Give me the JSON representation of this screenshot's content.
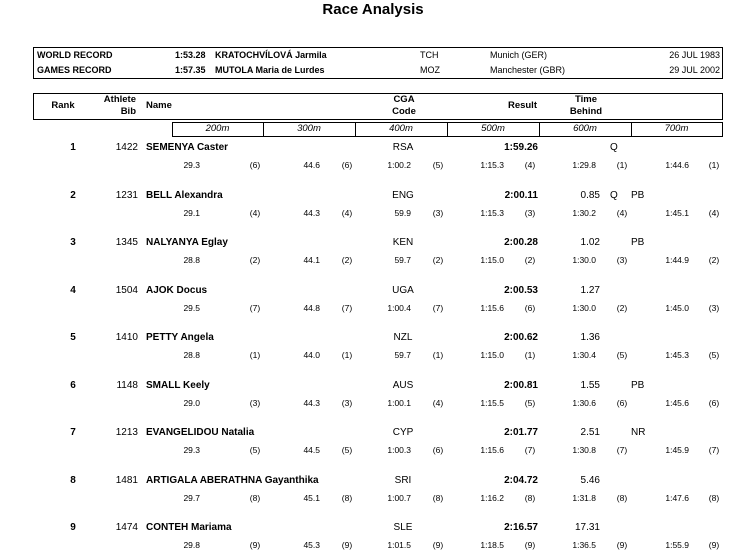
{
  "title": "Race Analysis",
  "records": [
    {
      "label": "WORLD RECORD",
      "time": "1:53.28",
      "name": "KRATOCHVÍLOVÁ Jarmila",
      "country": "TCH",
      "venue": "Munich (GER)",
      "date": "26 JUL 1983"
    },
    {
      "label": "GAMES RECORD",
      "time": "1:57.35",
      "name": "MUTOLA Maria de Lurdes",
      "country": "MOZ",
      "venue": "Manchester (GBR)",
      "date": "29 JUL 2002"
    }
  ],
  "table": {
    "headers": {
      "rank": [
        "Rank"
      ],
      "bib": [
        "Athlete",
        "Bib"
      ],
      "name": [
        "Name"
      ],
      "code": [
        "CGA",
        "Code"
      ],
      "result": [
        "Result"
      ],
      "behind": [
        "Time",
        "Behind"
      ]
    },
    "splits": [
      "200m",
      "300m",
      "400m",
      "500m",
      "600m",
      "700m"
    ],
    "rows": [
      {
        "rank": "1",
        "bib": "1422",
        "name": "SEMENYA Caster",
        "code": "RSA",
        "result": "1:59.26",
        "qual": "Q",
        "splits": [
          [
            "29.3",
            "(6)"
          ],
          [
            "44.6",
            "(6)"
          ],
          [
            "1:00.2",
            "(5)"
          ],
          [
            "1:15.3",
            "(4)"
          ],
          [
            "1:29.8",
            "(1)"
          ],
          [
            "1:44.6",
            "(1)"
          ]
        ]
      },
      {
        "rank": "2",
        "bib": "1231",
        "name": "BELL Alexandra",
        "code": "ENG",
        "result": "2:00.11",
        "behind": "0.85",
        "qual": "Q",
        "note": "PB",
        "splits": [
          [
            "29.1",
            "(4)"
          ],
          [
            "44.3",
            "(4)"
          ],
          [
            "59.9",
            "(3)"
          ],
          [
            "1:15.3",
            "(3)"
          ],
          [
            "1:30.2",
            "(4)"
          ],
          [
            "1:45.1",
            "(4)"
          ]
        ]
      },
      {
        "rank": "3",
        "bib": "1345",
        "name": "NALYANYA Eglay",
        "code": "KEN",
        "result": "2:00.28",
        "behind": "1.02",
        "note": "PB",
        "splits": [
          [
            "28.8",
            "(2)"
          ],
          [
            "44.1",
            "(2)"
          ],
          [
            "59.7",
            "(2)"
          ],
          [
            "1:15.0",
            "(2)"
          ],
          [
            "1:30.0",
            "(3)"
          ],
          [
            "1:44.9",
            "(2)"
          ]
        ]
      },
      {
        "rank": "4",
        "bib": "1504",
        "name": "AJOK Docus",
        "code": "UGA",
        "result": "2:00.53",
        "behind": "1.27",
        "splits": [
          [
            "29.5",
            "(7)"
          ],
          [
            "44.8",
            "(7)"
          ],
          [
            "1:00.4",
            "(7)"
          ],
          [
            "1:15.6",
            "(6)"
          ],
          [
            "1:30.0",
            "(2)"
          ],
          [
            "1:45.0",
            "(3)"
          ]
        ]
      },
      {
        "rank": "5",
        "bib": "1410",
        "name": "PETTY Angela",
        "code": "NZL",
        "result": "2:00.62",
        "behind": "1.36",
        "splits": [
          [
            "28.8",
            "(1)"
          ],
          [
            "44.0",
            "(1)"
          ],
          [
            "59.7",
            "(1)"
          ],
          [
            "1:15.0",
            "(1)"
          ],
          [
            "1:30.4",
            "(5)"
          ],
          [
            "1:45.3",
            "(5)"
          ]
        ]
      },
      {
        "rank": "6",
        "bib": "1148",
        "name": "SMALL Keely",
        "code": "AUS",
        "result": "2:00.81",
        "behind": "1.55",
        "note": "PB",
        "splits": [
          [
            "29.0",
            "(3)"
          ],
          [
            "44.3",
            "(3)"
          ],
          [
            "1:00.1",
            "(4)"
          ],
          [
            "1:15.5",
            "(5)"
          ],
          [
            "1:30.6",
            "(6)"
          ],
          [
            "1:45.6",
            "(6)"
          ]
        ]
      },
      {
        "rank": "7",
        "bib": "1213",
        "name": "EVANGELIDOU Natalia",
        "code": "CYP",
        "result": "2:01.77",
        "behind": "2.51",
        "note": "NR",
        "splits": [
          [
            "29.3",
            "(5)"
          ],
          [
            "44.5",
            "(5)"
          ],
          [
            "1:00.3",
            "(6)"
          ],
          [
            "1:15.6",
            "(7)"
          ],
          [
            "1:30.8",
            "(7)"
          ],
          [
            "1:45.9",
            "(7)"
          ]
        ]
      },
      {
        "rank": "8",
        "bib": "1481",
        "name": "ARTIGALA ABERATHNA Gayanthika",
        "code": "SRI",
        "result": "2:04.72",
        "behind": "5.46",
        "splits": [
          [
            "29.7",
            "(8)"
          ],
          [
            "45.1",
            "(8)"
          ],
          [
            "1:00.7",
            "(8)"
          ],
          [
            "1:16.2",
            "(8)"
          ],
          [
            "1:31.8",
            "(8)"
          ],
          [
            "1:47.6",
            "(8)"
          ]
        ]
      },
      {
        "rank": "9",
        "bib": "1474",
        "name": "CONTEH Mariama",
        "code": "SLE",
        "result": "2:16.57",
        "behind": "17.31",
        "splits": [
          [
            "29.8",
            "(9)"
          ],
          [
            "45.3",
            "(9)"
          ],
          [
            "1:01.5",
            "(9)"
          ],
          [
            "1:18.5",
            "(9)"
          ],
          [
            "1:36.5",
            "(9)"
          ],
          [
            "1:55.9",
            "(9)"
          ]
        ]
      }
    ]
  }
}
